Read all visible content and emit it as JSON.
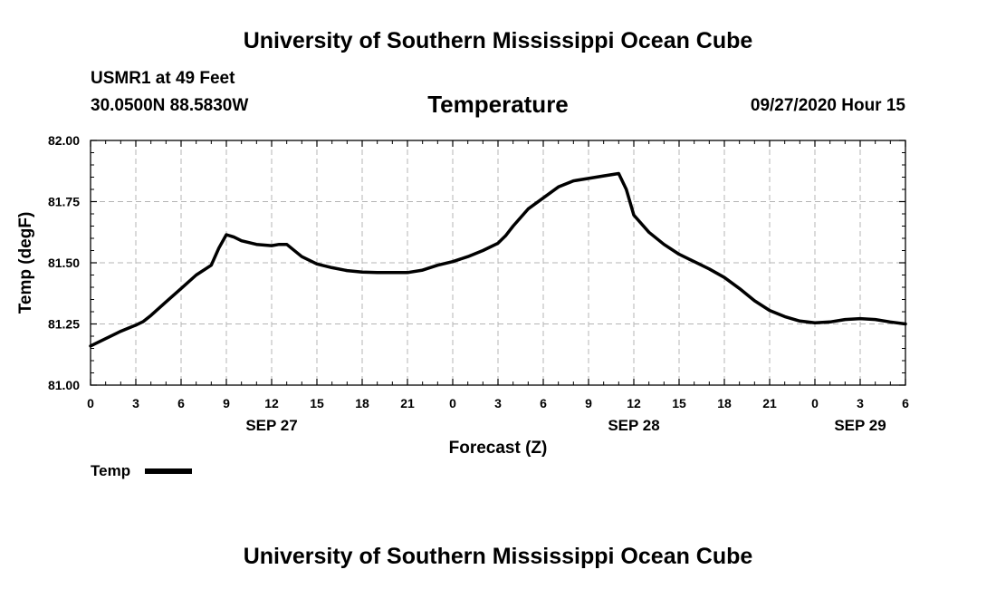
{
  "header": {
    "title": "University of Southern Mississippi Ocean Cube",
    "station": "USMR1 at 49 Feet",
    "coords": "30.0500N 88.5830W",
    "variable": "Temperature",
    "datetime": "09/27/2020 Hour 15"
  },
  "footer": {
    "title": "University of Southern Mississippi Ocean Cube"
  },
  "chart_data": {
    "type": "line",
    "xlabel": "Forecast (Z)",
    "ylabel": "Temp (degF)",
    "xlim": [
      0,
      54
    ],
    "ylim": [
      81.0,
      82.0
    ],
    "x_tick_values": [
      0,
      3,
      6,
      9,
      12,
      15,
      18,
      21,
      24,
      27,
      30,
      33,
      36,
      39,
      42,
      45,
      48,
      51,
      54
    ],
    "x_tick_labels": [
      "0",
      "3",
      "6",
      "9",
      "12",
      "15",
      "18",
      "21",
      "0",
      "3",
      "6",
      "9",
      "12",
      "15",
      "18",
      "21",
      "0",
      "3",
      "6"
    ],
    "y_tick_values": [
      81.0,
      81.25,
      81.5,
      81.75,
      82.0
    ],
    "y_tick_labels": [
      "81.00",
      "81.25",
      "81.50",
      "81.75",
      "82.00"
    ],
    "date_labels": [
      {
        "x": 12,
        "label": "SEP 27"
      },
      {
        "x": 36,
        "label": "SEP 28"
      },
      {
        "x": 51,
        "label": "SEP 29"
      }
    ],
    "grid": true,
    "legend": "bottom-left",
    "series": [
      {
        "name": "Temp",
        "color": "#000000",
        "x": [
          0,
          1,
          2,
          3,
          3.5,
          4,
          5,
          6,
          7,
          8,
          8.5,
          9,
          9.5,
          10,
          11,
          12,
          12.5,
          13,
          14,
          15,
          16,
          17,
          18,
          19,
          20,
          21,
          22,
          23,
          24,
          25,
          26,
          27,
          27.5,
          28,
          29,
          30,
          31,
          32,
          33,
          34,
          35,
          35.5,
          36,
          37,
          38,
          39,
          40,
          41,
          42,
          43,
          44,
          45,
          46,
          47,
          48,
          49,
          50,
          51,
          52,
          53,
          54
        ],
        "y": [
          81.16,
          81.19,
          81.22,
          81.245,
          81.26,
          81.285,
          81.34,
          81.395,
          81.45,
          81.49,
          81.56,
          81.615,
          81.605,
          81.59,
          81.575,
          81.57,
          81.575,
          81.575,
          81.525,
          81.495,
          81.48,
          81.468,
          81.462,
          81.46,
          81.46,
          81.46,
          81.47,
          81.49,
          81.505,
          81.525,
          81.55,
          81.58,
          81.61,
          81.65,
          81.72,
          81.765,
          81.81,
          81.835,
          81.845,
          81.855,
          81.865,
          81.8,
          81.695,
          81.625,
          81.575,
          81.535,
          81.505,
          81.475,
          81.44,
          81.395,
          81.345,
          81.305,
          81.28,
          81.262,
          81.255,
          81.258,
          81.268,
          81.272,
          81.268,
          81.258,
          81.25
        ]
      }
    ]
  }
}
